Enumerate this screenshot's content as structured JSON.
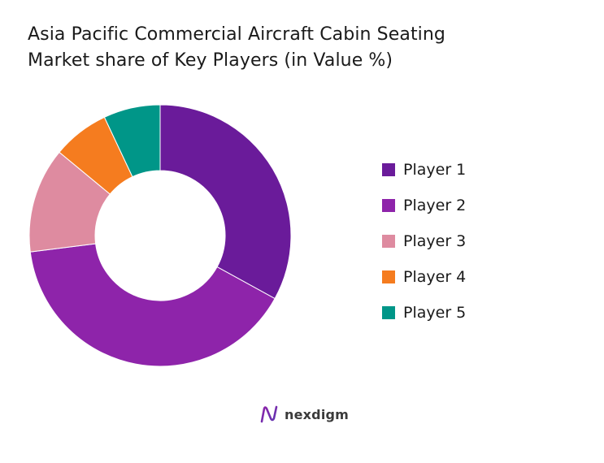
{
  "chart_data": {
    "type": "donut",
    "title_lines": [
      "Asia Pacific Commercial Aircraft Cabin Seating",
      "Market share of Key Players (in Value %)"
    ],
    "start_angle_deg": 0,
    "direction": "clockwise",
    "legend_position": "right",
    "series": [
      {
        "name": "Player 1",
        "value": 33,
        "color": "#6a1b9a"
      },
      {
        "name": "Player 2",
        "value": 40,
        "color": "#8e24aa"
      },
      {
        "name": "Player 3",
        "value": 13,
        "color": "#de8ba0"
      },
      {
        "name": "Player 4",
        "value": 7,
        "color": "#f57c1f"
      },
      {
        "name": "Player 5",
        "value": 7,
        "color": "#009688"
      }
    ]
  },
  "brand": {
    "name": "nexdigm",
    "icon": "nexdigm-logo-icon"
  }
}
